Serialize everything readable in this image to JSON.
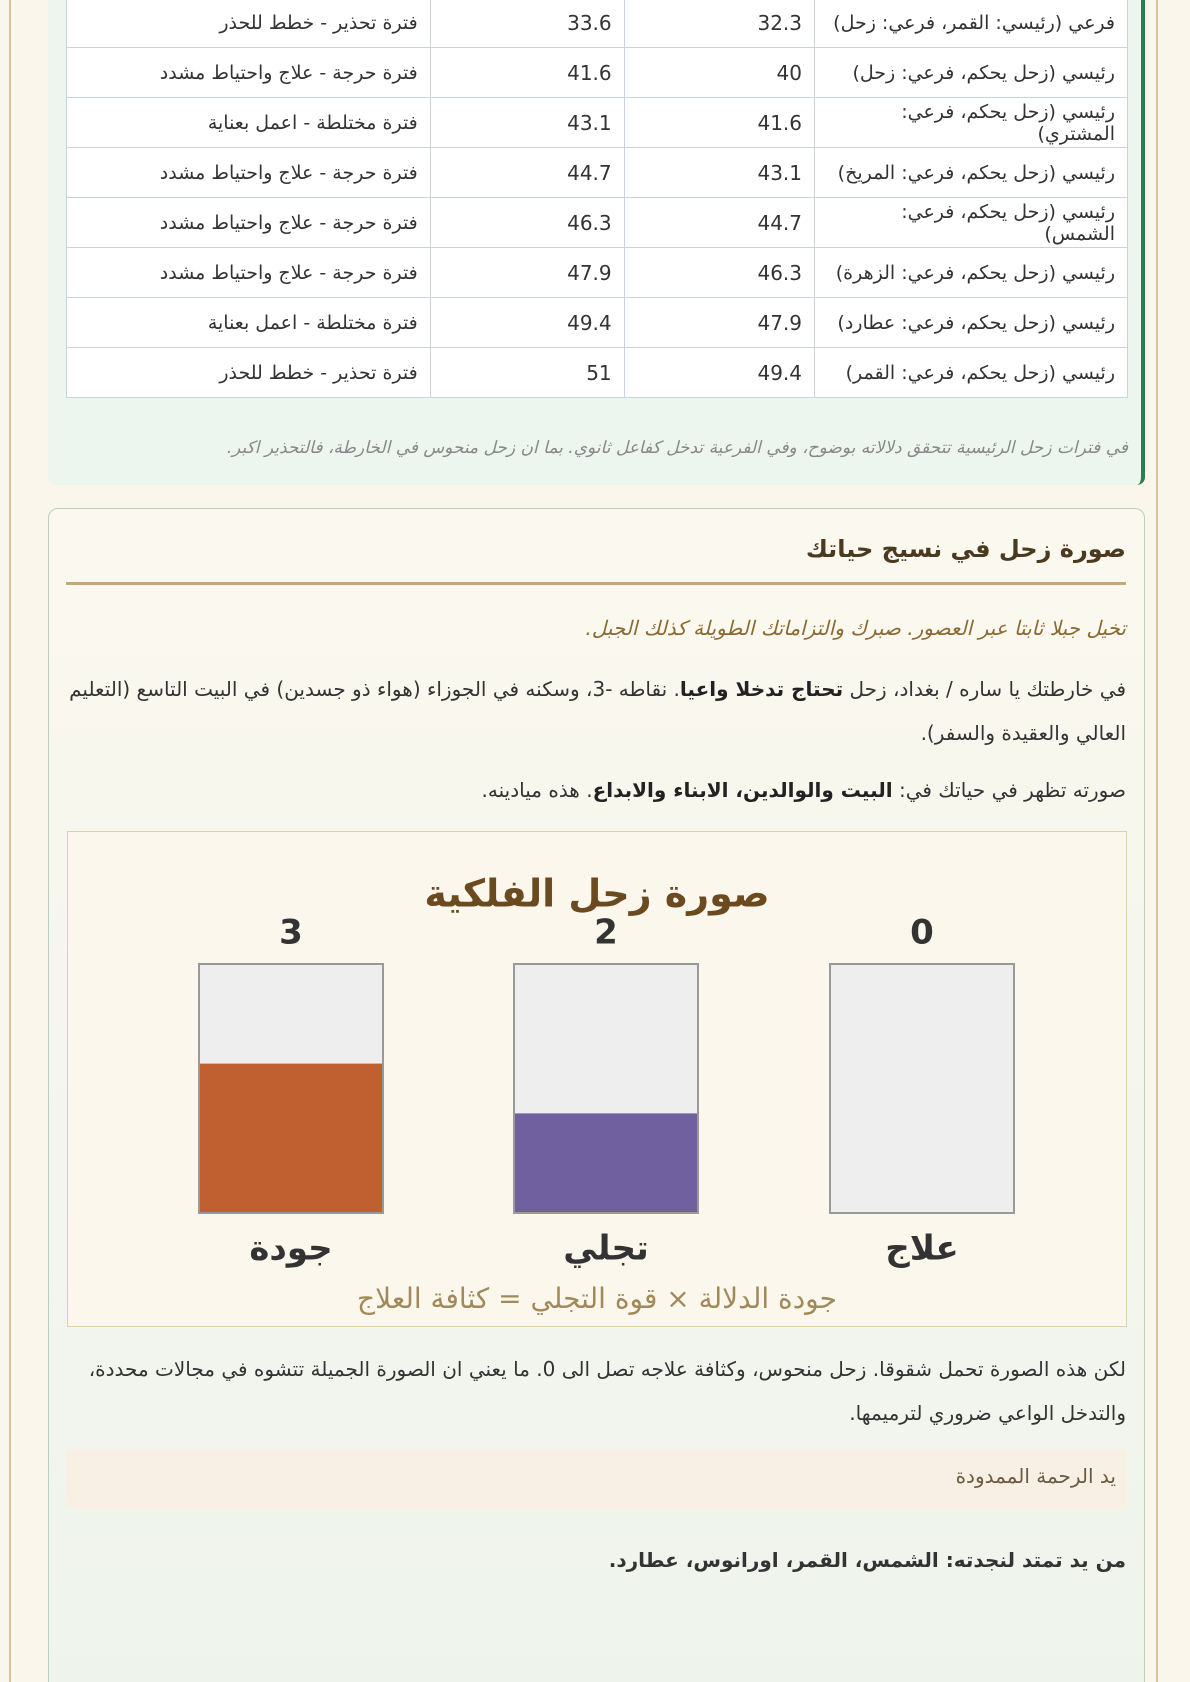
{
  "table": {
    "rows": [
      [
        "فرعي (رئيسي: القمر، فرعي: زحل)",
        32.3,
        33.6,
        "فترة تحذير - خطط للحذر"
      ],
      [
        "رئيسي (زحل يحكم، فرعي: زحل)",
        40,
        41.6,
        "فترة حرجة - علاج واحتياط مشدد"
      ],
      [
        "رئيسي (زحل يحكم، فرعي: المشتري)",
        41.6,
        43.1,
        "فترة مختلطة - اعمل بعناية"
      ],
      [
        "رئيسي (زحل يحكم، فرعي: المريخ)",
        43.1,
        44.7,
        "فترة حرجة - علاج واحتياط مشدد"
      ],
      [
        "رئيسي (زحل يحكم، فرعي: الشمس)",
        44.7,
        46.3,
        "فترة حرجة - علاج واحتياط مشدد"
      ],
      [
        "رئيسي (زحل يحكم، فرعي: الزهرة)",
        46.3,
        47.9,
        "فترة حرجة - علاج واحتياط مشدد"
      ],
      [
        "رئيسي (زحل يحكم، فرعي: عطارد)",
        47.9,
        49.4,
        "فترة مختلطة - اعمل بعناية"
      ],
      [
        "رئيسي (زحل يحكم، فرعي: القمر)",
        49.4,
        51,
        "فترة تحذير - خطط للحذر"
      ]
    ],
    "note": "في فترات زحل الرئيسية تتحقق دلالاته بوضوح، وفي الفرعية تدخل كفاعل ثانوي. بما ان زحل منحوس في الخارطة، فالتحذير اكبر."
  },
  "section": {
    "title": "صورة زحل في نسيج حياتك",
    "quote": "تخيل جبلا ثابتا عبر العصور. صبرك والتزاماتك الطويلة كذلك الجبل.",
    "paragraph1": [
      "في خارطتك يا ساره / بغداد، زحل ",
      "تحتاج تدخلا واعيا",
      ". نقاطه -3، وسكنه في الجوزاء (هواء ذو جسدين) في البيت التاسع (التعليم العالي والعقيدة والسفر)."
    ],
    "paragraph2": [
      "صورته تظهر في حياتك في: ",
      "البيت والوالدين، الابناء والابداع",
      ". هذه ميادينه."
    ],
    "figure": {
      "type": "bar",
      "title": "صورة زحل الفلكية",
      "categories": [
        "جودة",
        "تجلي",
        "علاج"
      ],
      "values": [
        3,
        2,
        0
      ],
      "colors": [
        "#c06030",
        "#7060a0",
        "#eeeeee"
      ],
      "ylim": [
        0,
        5
      ],
      "caption": "جودة الدلالة × قوة التجلي = كثافة العلاج"
    },
    "paragraph3": "لكن هذه الصورة تحمل شقوقا. زحل منحوس، وكثافة علاجه تصل الى 0. ما يعني ان الصورة الجميلة تتشوه في مجالات محددة، والتدخل الواعي ضروري لترميمها.",
    "box_title": "يد الرحمة الممدودة",
    "helpers": "من يد تمتد لنجدته: الشمس، القمر، اورانوس، عطارد."
  }
}
